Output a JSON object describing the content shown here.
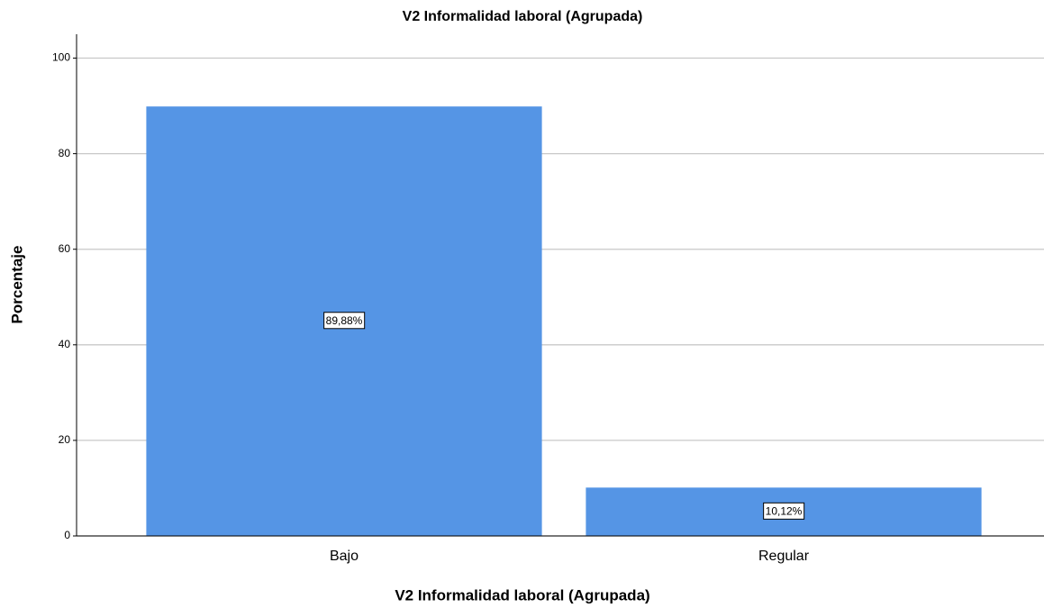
{
  "chart_data": {
    "type": "bar",
    "title": "V2 Informalidad laboral (Agrupada)",
    "x_label": "V2 Informalidad laboral (Agrupada)",
    "y_label": "Porcentaje",
    "categories": [
      "Bajo",
      "Regular"
    ],
    "values": [
      89.88,
      10.12
    ],
    "value_labels": [
      "89,88%",
      "10,12%"
    ],
    "color": "#5595e5",
    "ylim": [
      0,
      105
    ],
    "yticks": [
      0,
      20,
      40,
      60,
      80,
      100
    ],
    "grid": true
  }
}
